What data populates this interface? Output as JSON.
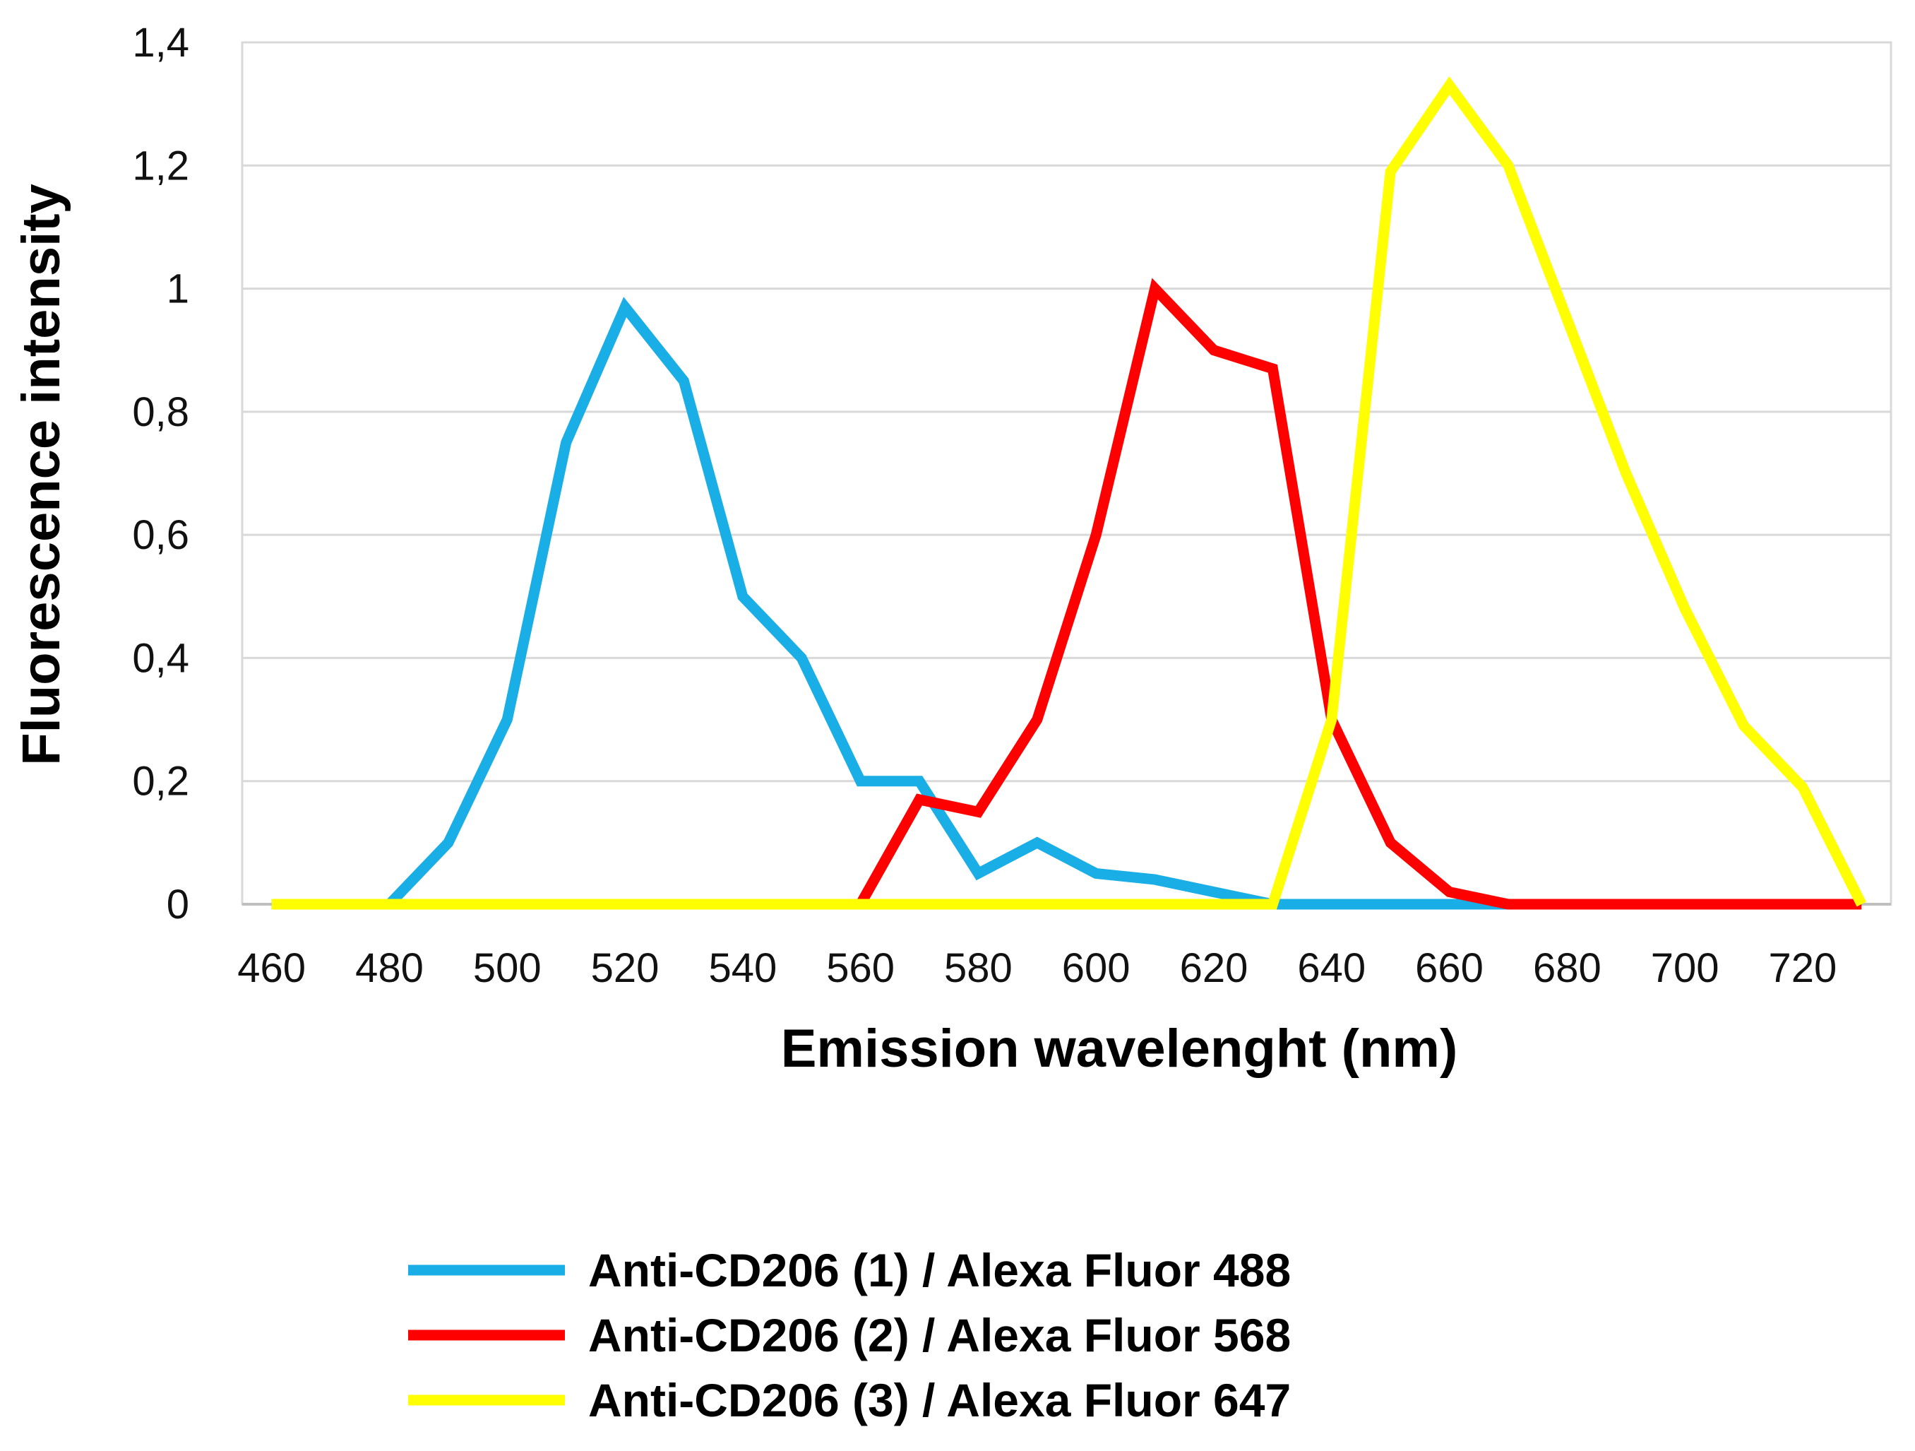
{
  "chart_data": {
    "type": "line",
    "title": "",
    "xlabel": "Emission wavelenght (nm)",
    "ylabel": "Fluorescence intensity",
    "xlim": [
      455,
      735
    ],
    "ylim": [
      0,
      1.4
    ],
    "x_ticks": [
      460,
      480,
      500,
      520,
      540,
      560,
      580,
      600,
      620,
      640,
      660,
      680,
      700,
      720
    ],
    "y_ticks": [
      0,
      0.2,
      0.4,
      0.6,
      0.8,
      1,
      1.2,
      1.4
    ],
    "y_tick_labels": [
      "0",
      "0,2",
      "0,4",
      "0,6",
      "0,8",
      "1",
      "1,2",
      "1,4"
    ],
    "grid": true,
    "legend_position": "bottom",
    "series": [
      {
        "name": "Anti-CD206 (1) / Alexa Fluor 488",
        "color": "#1AAEE6",
        "x": [
          460,
          470,
          480,
          490,
          500,
          510,
          520,
          530,
          540,
          550,
          560,
          570,
          580,
          590,
          600,
          610,
          620,
          630,
          640,
          650,
          660,
          670
        ],
        "values": [
          0,
          0,
          0,
          0.1,
          0.3,
          0.75,
          0.97,
          0.85,
          0.5,
          0.4,
          0.2,
          0.2,
          0.05,
          0.1,
          0.05,
          0.04,
          0.02,
          0,
          0,
          0,
          0,
          0
        ]
      },
      {
        "name": "Anti-CD206 (2) / Alexa Fluor 568",
        "color": "#FF0000",
        "x": [
          560,
          570,
          580,
          590,
          600,
          610,
          620,
          630,
          640,
          650,
          660,
          670,
          680,
          690,
          700,
          710,
          720,
          730
        ],
        "values": [
          0,
          0.17,
          0.15,
          0.3,
          0.6,
          1.0,
          0.9,
          0.87,
          0.3,
          0.1,
          0.02,
          0,
          0,
          0,
          0,
          0,
          0,
          0
        ]
      },
      {
        "name": "Anti-CD206 (3) / Alexa Fluor 647",
        "color": "#FFFF00",
        "x": [
          460,
          470,
          480,
          490,
          500,
          510,
          520,
          530,
          540,
          550,
          560,
          570,
          580,
          590,
          600,
          610,
          620,
          630,
          640,
          650,
          660,
          670,
          680,
          690,
          700,
          710,
          720,
          730
        ],
        "values": [
          0,
          0,
          0,
          0,
          0,
          0,
          0,
          0,
          0,
          0,
          0,
          0,
          0,
          0,
          0,
          0,
          0,
          0,
          0.3,
          1.19,
          1.33,
          1.2,
          0.95,
          0.7,
          0.48,
          0.29,
          0.19,
          0
        ]
      }
    ]
  }
}
